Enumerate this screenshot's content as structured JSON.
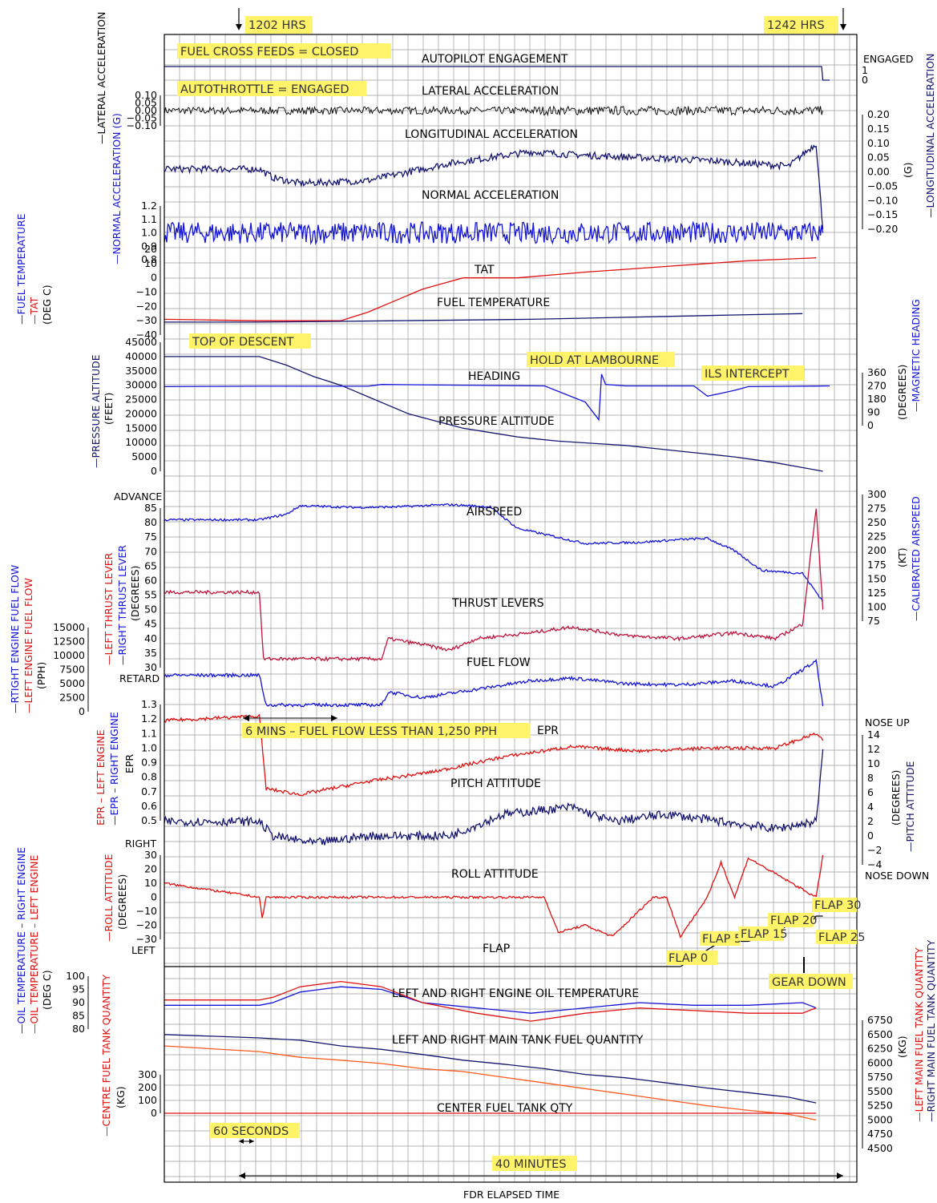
{
  "top_markers": {
    "start": "1202 HRS",
    "end": "1242 HRS"
  },
  "annotations": {
    "cross_feeds": "FUEL CROSS FEEDS = CLOSED",
    "autothrottle": "AUTOTHROTTLE = ENGAGED",
    "top_of_descent": "TOP OF DESCENT",
    "hold": "HOLD AT LAMBOURNE",
    "ils": "ILS INTERCEPT",
    "low_fuel_flow": "6 MINS – FUEL FLOW LESS THAN 1,250 PPH",
    "gear_down": "GEAR DOWN",
    "sixty_seconds": "60 SECONDS",
    "forty_minutes": "40 MINUTES"
  },
  "trace_titles": {
    "autopilot": "AUTOPILOT ENGAGEMENT",
    "lateral": "LATERAL ACCELERATION",
    "longitudinal": "LONGITUDINAL ACCELERATION",
    "normal": "NORMAL ACCELERATION",
    "tat": "TAT",
    "fuel_temp": "FUEL TEMPERATURE",
    "heading": "HEADING",
    "altitude": "PRESSURE ALTITUDE",
    "airspeed": "AIRSPEED",
    "thrust": "THRUST LEVERS",
    "fuel_flow": "FUEL FLOW",
    "epr": "EPR",
    "pitch": "PITCH ATTITUDE",
    "roll": "ROLL ATTITUDE",
    "flap": "FLAP",
    "oil_temp": "LEFT AND RIGHT ENGINE OIL TEMPERATURE",
    "main_fuel": "LEFT AND RIGHT MAIN TANK FUEL QUANTITY",
    "centre_fuel": "CENTER FUEL TANK QTY"
  },
  "flap_labels": [
    "FLAP 0",
    "FLAP 5",
    "FLAP 15",
    "FLAP 20",
    "FLAP 25",
    "FLAP 30"
  ],
  "side_labels": {
    "advance": "ADVANCE",
    "retard": "RETARD",
    "engaged": "ENGAGED",
    "nose_up": "NOSE UP",
    "nose_down": "NOSE DOWN",
    "right": "RIGHT",
    "left": "LEFT"
  },
  "axis_titles": {
    "lateral": "—LATERAL ACCELERATION",
    "normal": "—NORMAL ACCELERATION (G)",
    "fuel_temperature": "—FUEL TEMPERATURE",
    "tat": "—TAT",
    "deg_c": "(DEG C)",
    "pressure_altitude": "—PRESSURE ALTITUDE",
    "feet": "(FEET)",
    "right_fuel_flow": "—RTIGHT ENGINE FUEL FLOW",
    "left_fuel_flow": "—LEFT ENGINE FUEL FLOW",
    "pph": "(PPH)",
    "left_thrust": "—LEFT THRUST LEVER",
    "right_thrust": "—RIGHT THRUST LEVER",
    "degrees": "(DEGREES)",
    "epr_left": "EPR – LEFT ENGINE",
    "epr_right": "—EPR – RIGHT ENGINE",
    "epr": "EPR",
    "oil_right": "—OIL TEMPERATURE – RIGHT ENGINE",
    "oil_left": "—OIL TEMPERATURE – LEFT ENGINE",
    "roll": "—ROLL ATTITUDE",
    "centre_fuel": "—CENTRE FUEL TANK QUANTITY",
    "kg": "(KG)",
    "longitudinal": "—LONGITUDINAL ACCELERATION",
    "g": "(G)",
    "magnetic_heading": "—MAGNETIC HEADING",
    "calibrated_airspeed": "—CALIBRATED AIRSPEED",
    "kt": "(KT)",
    "pitch_attitude": "—PITCH ATTITUDE",
    "left_main_fuel": "—LEFT MAIN FUEL TANK QUANTITY",
    "right_main_fuel": "—RIGHT MAIN FUEL TANK QUANTITY",
    "x_axis": "FDR ELAPSED TIME"
  },
  "colors": {
    "red": "#e01010",
    "blue": "#1414d8",
    "navy": "#14146e",
    "black": "#000000",
    "grid": "#9a9a9a",
    "highlight": "#fff36a",
    "crimson": "#c0143c"
  },
  "chart_data": {
    "type": "line",
    "title": "",
    "xlabel": "FDR ELAPSED TIME",
    "xlim_minutes": [
      -7,
      44
    ],
    "time_markers": {
      "1202 HRS": 0,
      "1242 HRS": 40
    },
    "grid": true,
    "panels": [
      {
        "name": "autopilot",
        "ticks": [
          "1",
          "0"
        ],
        "series": [
          {
            "color": "navy",
            "x": [
              -7,
              41.4,
              41.5,
              42
            ],
            "y": [
              1,
              1,
              0,
              0
            ]
          }
        ]
      },
      {
        "name": "lateral",
        "ticks": [
          "0.10",
          "0.05",
          "0.00",
          "-0.05",
          "-0.10"
        ],
        "noise": "high",
        "series": [
          {
            "color": "black",
            "x": [
              -7,
              41.5
            ],
            "y": [
              0,
              0
            ]
          }
        ]
      },
      {
        "name": "longitudinal",
        "ticks": [
          "0.20",
          "0.15",
          "0.10",
          "0.05",
          "0.00",
          "-0.05",
          "-0.10",
          "-0.15",
          "-0.20"
        ],
        "series": [
          {
            "color": "navy",
            "x": [
              -7,
              0,
              1,
              3,
              8,
              14,
              20,
              23,
              28,
              33,
              36,
              39,
              41,
              41.5
            ],
            "y": [
              0.01,
              0.01,
              -0.02,
              -0.04,
              -0.03,
              0.03,
              0.07,
              0.06,
              0.05,
              0.04,
              0.03,
              0.02,
              0.1,
              -0.2
            ]
          }
        ]
      },
      {
        "name": "normal",
        "ticks": [
          "1.2",
          "1.1",
          "1.0",
          "0.9",
          "0.8"
        ],
        "series": [
          {
            "color": "blue",
            "x": [
              -7,
              41.5
            ],
            "y": [
              1.0,
              1.0
            ]
          }
        ]
      },
      {
        "name": "tat",
        "ticks": [
          "20",
          "10",
          "0",
          "-10",
          "-20",
          "-30",
          "-40"
        ],
        "series": [
          {
            "color": "red",
            "x": [
              -7,
              0,
              6,
              8,
              12,
              15,
              19,
              24,
              30,
              36,
              41
            ],
            "y": [
              -29,
              -30,
              -30,
              -24,
              -8,
              0,
              0,
              4,
              8,
              12,
              14
            ]
          }
        ]
      },
      {
        "name": "fuel_temperature",
        "series": [
          {
            "color": "navy",
            "x": [
              -7,
              0,
              10,
              20,
              30,
              40
            ],
            "y": [
              -31,
              -31,
              -30,
              -29,
              -27,
              -25
            ]
          }
        ]
      },
      {
        "name": "pressure_altitude",
        "ticks": [
          "45000",
          "40000",
          "35000",
          "30000",
          "25000",
          "20000",
          "15000",
          "10000",
          "5000",
          "0"
        ],
        "series": [
          {
            "color": "navy",
            "x": [
              -7,
              0,
              2,
              4,
              6,
              8,
              11,
              15,
              19,
              22,
              27,
              31,
              35,
              38,
              41.5
            ],
            "y": [
              40000,
              40000,
              37000,
              33000,
              30000,
              26000,
              20000,
              15000,
              12000,
              10500,
              9000,
              7000,
              5000,
              3000,
              0
            ]
          }
        ]
      },
      {
        "name": "heading",
        "ticks": [
          "360",
          "270",
          "180",
          "90",
          "0"
        ],
        "series": [
          {
            "color": "blue",
            "x": [
              -7,
              0,
              8,
              9,
              21,
              24,
              25,
              25.2,
              25.5,
              27,
              32,
              33,
              35,
              36,
              42
            ],
            "y": [
              265,
              268,
              268,
              280,
              270,
              160,
              40,
              350,
              280,
              270,
              270,
              200,
              240,
              265,
              270
            ]
          }
        ]
      },
      {
        "name": "airspeed",
        "ticks": [
          "300",
          "275",
          "250",
          "225",
          "200",
          "175",
          "150",
          "125",
          "100",
          "75"
        ],
        "series": [
          {
            "color": "blue",
            "x": [
              -7,
              0,
              2,
              3,
              7,
              10,
              14,
              17,
              19,
              24,
              28,
              31,
              33,
              35,
              37,
              40,
              41.5
            ],
            "y": [
              255,
              255,
              265,
              280,
              277,
              278,
              282,
              278,
              240,
              213,
              215,
              220,
              222,
              200,
              165,
              160,
              110
            ]
          }
        ]
      },
      {
        "name": "thrust_levers",
        "ticks": [
          "ADVANCE",
          "85",
          "80",
          "75",
          "70",
          "65",
          "60",
          "55",
          "50",
          "45",
          "40",
          "35",
          "30"
        ],
        "series": [
          {
            "color": "crimson",
            "x": [
              -7,
              0,
              0.3,
              9,
              9.5,
              12,
              14,
              16,
              20,
              23,
              27,
              31,
              35,
              38,
              40,
              41,
              41.5
            ],
            "y": [
              56,
              56,
              33,
              33,
              40,
              38,
              36,
              40,
              42,
              44,
              41,
              40,
              42,
              40,
              45,
              85,
              50
            ]
          }
        ]
      },
      {
        "name": "fuel_flow",
        "ticks": [
          "15000",
          "12500",
          "10000",
          "7500",
          "5000",
          "2500",
          "0"
        ],
        "series": [
          {
            "color": "blue",
            "x": [
              -7,
              0,
              0.5,
              9,
              9.5,
              12,
              16,
              20,
              23,
              27,
              31,
              35,
              38,
              41,
              41.5
            ],
            "y": [
              6500,
              6500,
              1200,
              1200,
              3500,
              2500,
              4000,
              5500,
              6000,
              5000,
              4800,
              5500,
              4500,
              9000,
              1000
            ]
          }
        ]
      },
      {
        "name": "epr",
        "ticks": [
          "1.3",
          "1.2",
          "1.1",
          "1.0",
          "0.9",
          "0.8",
          "0.7",
          "0.6",
          "0.5"
        ],
        "series": [
          {
            "color": "red",
            "x": [
              -7,
              0,
              0.5,
              3,
              8,
              13,
              18,
              23,
              28,
              33,
              38,
              41,
              41.5
            ],
            "y": [
              1.19,
              1.22,
              0.72,
              0.68,
              0.77,
              0.84,
              0.94,
              1.01,
              0.98,
              1.0,
              1.0,
              1.1,
              1.05
            ]
          }
        ]
      },
      {
        "name": "pitch_attitude",
        "ticks": [
          "14",
          "12",
          "10",
          "8",
          "6",
          "4",
          "2",
          "0",
          "-2",
          "-4"
        ],
        "series": [
          {
            "color": "navy",
            "x": [
              -7,
              0,
              1,
              4,
              8,
              14,
              18,
              23,
              26,
              30,
              34,
              38,
              41,
              41.5
            ],
            "y": [
              2,
              2,
              0,
              -1,
              0,
              0,
              3,
              4,
              2,
              3,
              2,
              1,
              2,
              12
            ]
          }
        ]
      },
      {
        "name": "roll_attitude",
        "ticks": [
          "30",
          "20",
          "10",
          "0",
          "-10",
          "-20",
          "-30"
        ],
        "series": [
          {
            "color": "red",
            "x": [
              -7,
              0,
              0.2,
              0.5,
              10,
              21,
              22,
              24,
              26,
              29,
              30,
              31,
              33,
              34,
              35,
              36,
              41,
              41.5
            ],
            "y": [
              10,
              0,
              -15,
              0,
              0,
              0,
              -25,
              -20,
              -28,
              0,
              0,
              -28,
              0,
              25,
              0,
              28,
              0,
              30
            ]
          }
        ]
      },
      {
        "name": "flap",
        "ticks": [
          "LEFT"
        ],
        "series": [
          {
            "color": "black",
            "x": [
              -7,
              31,
              32,
              34,
              36,
              38,
              39,
              40.5,
              41,
              41.5
            ],
            "y": [
              0,
              0,
              5,
              15,
              15,
              20,
              25,
              25,
              30,
              30
            ]
          }
        ]
      },
      {
        "name": "oil_temperature",
        "ticks": [
          "100",
          "95",
          "90",
          "85",
          "80"
        ],
        "series": [
          {
            "color": "blue",
            "name": "RIGHT ENGINE",
            "x": [
              -7,
              0,
              1,
              3,
              6,
              9,
              12,
              16,
              20,
              24,
              28,
              32,
              36,
              40,
              41
            ],
            "y": [
              89,
              89,
              90,
              94,
              96,
              95,
              90,
              88,
              86,
              88,
              90,
              89,
              89,
              90,
              88
            ]
          },
          {
            "color": "red",
            "name": "LEFT ENGINE",
            "x": [
              -7,
              0,
              1,
              3,
              6,
              9,
              12,
              16,
              20,
              24,
              28,
              32,
              36,
              40,
              41
            ],
            "y": [
              91,
              91,
              92,
              96,
              98,
              96,
              90,
              86,
              83,
              86,
              88,
              87,
              86,
              86,
              88
            ]
          }
        ]
      },
      {
        "name": "main_tank_fuel",
        "ticks": [
          "6750",
          "6500",
          "6250",
          "6000",
          "5750",
          "5500",
          "5250",
          "5000",
          "4750",
          "4500"
        ],
        "series": [
          {
            "color": "navy",
            "name": "RIGHT MAIN",
            "x": [
              -7,
              0,
              3,
              6,
              9,
              12,
              15,
              18,
              21,
              24,
              27,
              30,
              33,
              36,
              39,
              41
            ],
            "y": [
              6500,
              6440,
              6400,
              6300,
              6240,
              6150,
              6050,
              5980,
              5900,
              5800,
              5740,
              5650,
              5560,
              5480,
              5400,
              5300
            ]
          },
          {
            "color": "orange",
            "name": "LEFT MAIN",
            "x": [
              -7,
              0,
              3,
              6,
              9,
              12,
              15,
              18,
              21,
              24,
              27,
              30,
              33,
              36,
              39,
              41
            ],
            "y": [
              6300,
              6200,
              6100,
              6050,
              5990,
              5900,
              5850,
              5750,
              5650,
              5550,
              5450,
              5350,
              5250,
              5170,
              5100,
              5000
            ]
          }
        ]
      },
      {
        "name": "centre_tank_fuel",
        "ticks": [
          "300",
          "200",
          "100",
          "0"
        ],
        "series": [
          {
            "color": "red",
            "x": [
              -7,
              41
            ],
            "y": [
              0,
              0
            ]
          }
        ]
      }
    ]
  }
}
